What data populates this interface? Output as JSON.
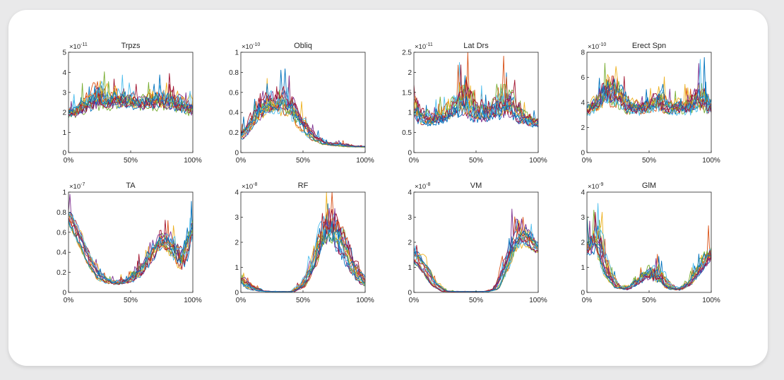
{
  "chart_data": [
    {
      "type": "line",
      "title": "Trpzs",
      "exponent": "-11",
      "ylim": [
        0,
        5
      ],
      "yticks": [
        "0",
        "1",
        "2",
        "3",
        "4",
        "5"
      ],
      "x": [
        0,
        50,
        100
      ],
      "xticks": [
        "0%",
        "50%",
        "100%"
      ],
      "nseries": 15,
      "envelope": {
        "baseline": [
          1.5,
          1.5,
          1.6,
          1.6,
          1.7,
          1.8,
          1.8,
          1.8,
          1.7,
          1.7,
          1.7,
          1.6,
          1.5
        ],
        "peak": [
          2.5,
          2.8,
          3.5,
          4.2,
          3.6,
          3.8,
          3.5,
          3.2,
          3.6,
          3.7,
          3.5,
          3.4,
          3.0
        ]
      }
    },
    {
      "type": "line",
      "title": "Obliq",
      "exponent": "-10",
      "ylim": [
        0,
        1
      ],
      "yticks": [
        "0",
        "0.2",
        "0.4",
        "0.6",
        "0.8",
        "1"
      ],
      "x": [
        0,
        50,
        100
      ],
      "xticks": [
        "0%",
        "50%",
        "100%"
      ],
      "nseries": 15,
      "envelope": {
        "baseline": [
          0.1,
          0.18,
          0.27,
          0.33,
          0.32,
          0.26,
          0.17,
          0.1,
          0.07,
          0.06,
          0.05,
          0.05,
          0.05
        ],
        "peak": [
          0.3,
          0.6,
          0.85,
          0.85,
          0.85,
          0.8,
          0.45,
          0.25,
          0.15,
          0.12,
          0.12,
          0.08,
          0.08
        ]
      }
    },
    {
      "type": "line",
      "title": "Lat Drs",
      "exponent": "-11",
      "ylim": [
        0,
        2.5
      ],
      "yticks": [
        "0",
        "0.5",
        "1",
        "1.5",
        "2",
        "2.5"
      ],
      "x": [
        0,
        50,
        100
      ],
      "xticks": [
        "0%",
        "50%",
        "100%"
      ],
      "nseries": 15,
      "envelope": {
        "baseline": [
          0.6,
          0.55,
          0.55,
          0.6,
          0.65,
          0.6,
          0.6,
          0.6,
          0.6,
          0.6,
          0.6,
          0.55,
          0.55
        ],
        "peak": [
          1.8,
          1.2,
          1.3,
          1.4,
          2.0,
          2.4,
          1.6,
          1.6,
          2.0,
          2.25,
          1.5,
          1.2,
          1.0
        ]
      }
    },
    {
      "type": "line",
      "title": "Erect Spn",
      "exponent": "-10",
      "ylim": [
        0,
        8
      ],
      "yticks": [
        "0",
        "2",
        "4",
        "6",
        "8"
      ],
      "x": [
        0,
        50,
        100
      ],
      "xticks": [
        "0%",
        "50%",
        "100%"
      ],
      "nseries": 15,
      "envelope": {
        "baseline": [
          2.5,
          2.5,
          2.6,
          2.7,
          2.6,
          2.5,
          2.5,
          2.5,
          2.5,
          2.4,
          2.4,
          2.4,
          2.4
        ],
        "peak": [
          4.2,
          5.5,
          7.5,
          6.5,
          4.5,
          4.5,
          5.0,
          6.0,
          4.5,
          4.8,
          5.0,
          6.8,
          4.5
        ]
      }
    },
    {
      "type": "line",
      "title": "TA",
      "exponent": "-7",
      "ylim": [
        0,
        1
      ],
      "yticks": [
        "0",
        "0.2",
        "0.4",
        "0.6",
        "0.8",
        "1"
      ],
      "x": [
        0,
        50,
        100
      ],
      "xticks": [
        "0%",
        "50%",
        "100%"
      ],
      "nseries": 15,
      "envelope": {
        "baseline": [
          0.65,
          0.48,
          0.25,
          0.1,
          0.06,
          0.06,
          0.06,
          0.1,
          0.25,
          0.42,
          0.3,
          0.14,
          0.45
        ],
        "peak": [
          1.0,
          0.7,
          0.45,
          0.25,
          0.18,
          0.16,
          0.25,
          0.45,
          0.6,
          0.7,
          0.75,
          0.6,
          1.0
        ]
      }
    },
    {
      "type": "line",
      "title": "RF",
      "exponent": "-8",
      "ylim": [
        0,
        4
      ],
      "yticks": [
        "0",
        "1",
        "2",
        "3",
        "4"
      ],
      "x": [
        0,
        50,
        100
      ],
      "xticks": [
        "0%",
        "50%",
        "100%"
      ],
      "nseries": 15,
      "envelope": {
        "baseline": [
          0.2,
          0.05,
          0.02,
          0.02,
          0.02,
          0.02,
          0.1,
          0.6,
          1.3,
          1.4,
          0.9,
          0.4,
          0.15
        ],
        "peak": [
          0.8,
          0.4,
          0.1,
          0.05,
          0.05,
          0.05,
          0.5,
          1.8,
          4.0,
          4.0,
          3.0,
          1.5,
          0.6
        ]
      }
    },
    {
      "type": "line",
      "title": "VM",
      "exponent": "-8",
      "ylim": [
        0,
        4
      ],
      "yticks": [
        "0",
        "1",
        "2",
        "3",
        "4"
      ],
      "x": [
        0,
        50,
        100
      ],
      "xticks": [
        "0%",
        "50%",
        "100%"
      ],
      "nseries": 15,
      "envelope": {
        "baseline": [
          1.2,
          0.7,
          0.2,
          0.02,
          0.02,
          0.02,
          0.02,
          0.02,
          0.05,
          0.6,
          1.5,
          1.7,
          1.4
        ],
        "peak": [
          2.1,
          1.5,
          0.6,
          0.1,
          0.05,
          0.05,
          0.05,
          0.05,
          0.3,
          2.0,
          3.5,
          3.0,
          2.3
        ]
      }
    },
    {
      "type": "line",
      "title": "GlM",
      "exponent": "-9",
      "ylim": [
        0,
        4
      ],
      "yticks": [
        "0",
        "1",
        "2",
        "3",
        "4"
      ],
      "x": [
        0,
        50,
        100
      ],
      "xticks": [
        "0%",
        "50%",
        "100%"
      ],
      "nseries": 15,
      "envelope": {
        "baseline": [
          1.2,
          1.1,
          0.4,
          0.1,
          0.05,
          0.2,
          0.3,
          0.15,
          0.05,
          0.05,
          0.2,
          0.5,
          0.9
        ],
        "peak": [
          2.5,
          4.0,
          1.5,
          0.4,
          0.3,
          0.8,
          1.5,
          1.5,
          0.5,
          0.2,
          0.6,
          1.8,
          2.5
        ]
      }
    }
  ],
  "colors": [
    "#0072BD",
    "#D95319",
    "#EDB120",
    "#7E2F8E",
    "#77AC30",
    "#4DBEEE",
    "#A2142F",
    "#0072BD",
    "#D95319",
    "#EDB120",
    "#7E2F8E",
    "#77AC30",
    "#4DBEEE",
    "#A2142F",
    "#0072BD"
  ]
}
